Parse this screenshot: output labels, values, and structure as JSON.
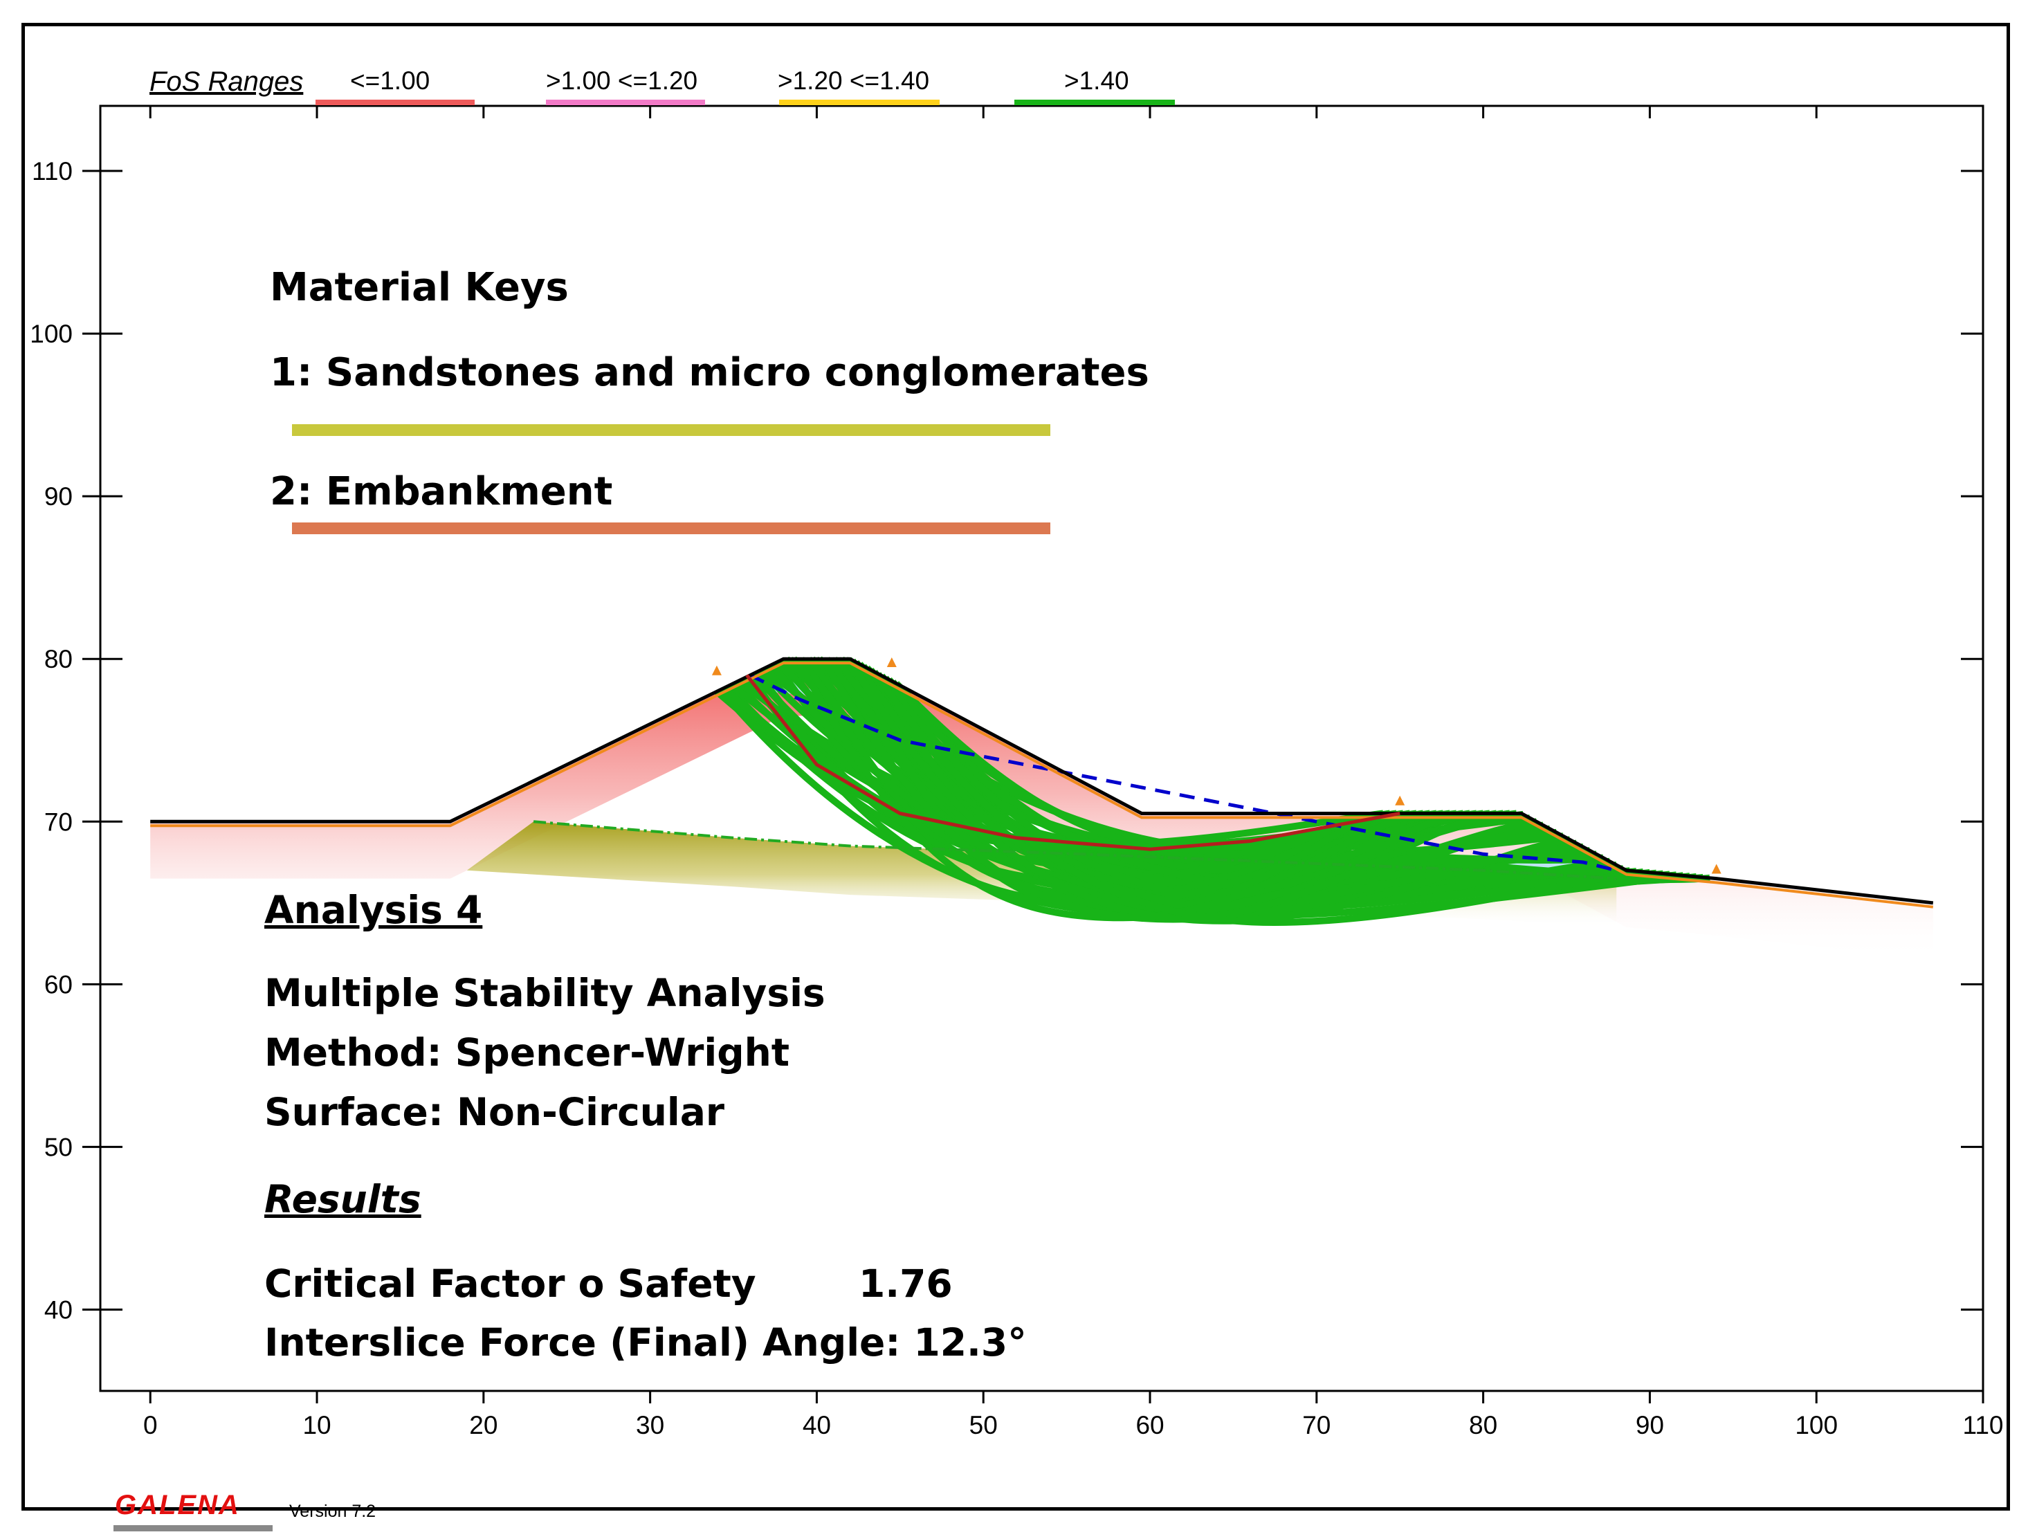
{
  "legend": {
    "title": "FoS Ranges",
    "items": [
      {
        "label": "<=1.00",
        "color": "#ee5a5a"
      },
      {
        "label": ">1.00 <=1.20",
        "color": "#f27ac7"
      },
      {
        "label": ">1.20 <=1.40",
        "color": "#ffd21a"
      },
      {
        "label": ">1.40",
        "color": "#18b418"
      }
    ]
  },
  "material_keys": {
    "heading": "Material Keys",
    "items": [
      {
        "label": "1:  Sandstones and micro conglomerates",
        "color": "#c8c83c"
      },
      {
        "label": "2: Embankment",
        "color": "#dc7850"
      }
    ]
  },
  "analysis": {
    "title": "Analysis 4",
    "lines": [
      "Multiple Stability Analysis",
      "Method: Spencer-Wright",
      "Surface: Non-Circular"
    ],
    "results_heading": "Results",
    "fos_label": "Critical Factor o Safety",
    "fos_value": "1.76",
    "angle_label": "Interslice Force (Final) Angle: 12.3°"
  },
  "footer": {
    "brand": "GALENA",
    "version": "Version 7.2"
  },
  "chart_data": {
    "type": "line",
    "title": "",
    "xlabel": "",
    "ylabel": "",
    "xlim": [
      -3,
      110
    ],
    "ylim": [
      35,
      114
    ],
    "xticks": [
      0,
      10,
      20,
      30,
      40,
      50,
      60,
      70,
      80,
      90,
      100,
      110
    ],
    "yticks": [
      40,
      50,
      60,
      70,
      80,
      90,
      100,
      110
    ],
    "grid": false,
    "series": [
      {
        "name": "Ground surface",
        "color": "#000000",
        "x": [
          0,
          18,
          38,
          42,
          59.5,
          82.3,
          88.6,
          94,
          107
        ],
        "y": [
          70,
          70,
          80,
          80,
          70.5,
          70.5,
          67,
          66.5,
          65
        ]
      },
      {
        "name": "Material 1 (Sandstones and micro conglomerates) top",
        "color": "#c8c83c",
        "x": [
          23,
          35,
          42,
          56,
          68,
          80,
          88
        ],
        "y": [
          70,
          69,
          68.5,
          68,
          67.5,
          67,
          66.5
        ]
      },
      {
        "name": "Water table",
        "color": "#0000cc",
        "x": [
          36,
          39,
          45,
          80,
          86,
          88
        ],
        "y": [
          79,
          77.5,
          75,
          68,
          67.5,
          67
        ]
      },
      {
        "name": "Critical surface (FoS 1.76)",
        "color": "#b41e1e",
        "x": [
          35.8,
          40,
          45,
          52,
          60,
          66,
          75
        ],
        "y": [
          79,
          73.5,
          70.5,
          69,
          68.3,
          68.8,
          70.5
        ]
      },
      {
        "name": "Trial surfaces (>1.40)",
        "color": "#18b418",
        "count": 50,
        "x_entry_range": [
          34,
          45
        ],
        "x_exit_range": [
          74,
          94
        ],
        "depth_range": [
          68.5,
          63.8
        ]
      }
    ]
  }
}
